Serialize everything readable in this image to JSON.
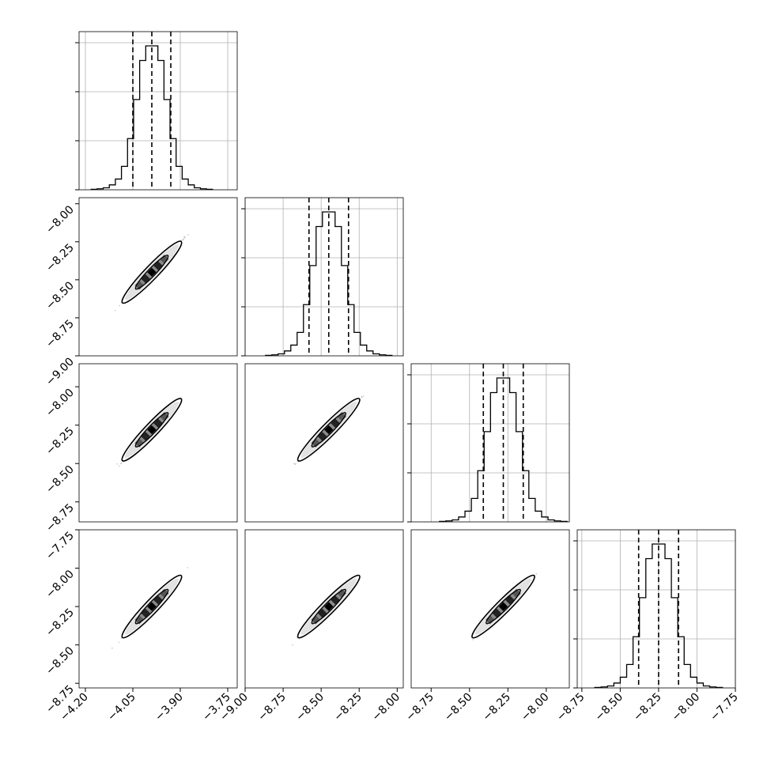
{
  "chart_data": {
    "type": "corner",
    "params": [
      {
        "lim": [
          -4.22,
          -3.72
        ],
        "ticks": [
          -4.2,
          -4.05,
          -3.9,
          -3.75
        ],
        "tick_labels": [
          "−4.20",
          "−4.05",
          "−3.90",
          "−3.75"
        ],
        "quantiles": [
          -4.05,
          -3.99,
          -3.93
        ]
      },
      {
        "lim": [
          -9.0,
          -7.96
        ],
        "ticks": [
          -9.0,
          -8.75,
          -8.5,
          -8.25,
          -8.0
        ],
        "tick_labels": [
          "−9.00",
          "−8.75",
          "−8.50",
          "−8.25",
          "−8.00"
        ],
        "quantiles": [
          -8.58,
          -8.45,
          -8.32
        ]
      },
      {
        "lim": [
          -8.88,
          -7.85
        ],
        "ticks": [
          -8.75,
          -8.5,
          -8.25,
          -8.0
        ],
        "tick_labels": [
          "−8.75",
          "−8.50",
          "−8.25",
          "−8.00"
        ],
        "quantiles": [
          -8.41,
          -8.28,
          -8.15
        ]
      },
      {
        "lim": [
          -8.78,
          -7.75
        ],
        "ticks": [
          -8.75,
          -8.5,
          -8.25,
          -8.0,
          -7.75
        ],
        "tick_labels": [
          "−8.75",
          "−8.50",
          "−8.25",
          "−8.00",
          "−7.75"
        ],
        "quantiles": [
          -8.38,
          -8.25,
          -8.12
        ]
      }
    ],
    "histograms": [
      [
        1,
        2,
        4,
        10,
        22,
        48,
        105,
        185,
        265,
        295,
        295,
        265,
        185,
        105,
        48,
        22,
        10,
        4,
        2,
        1
      ],
      [
        1,
        2,
        4,
        10,
        22,
        48,
        105,
        185,
        265,
        295,
        295,
        265,
        185,
        105,
        48,
        22,
        10,
        4,
        2,
        1
      ],
      [
        1,
        2,
        4,
        10,
        22,
        48,
        105,
        185,
        265,
        295,
        295,
        265,
        185,
        105,
        48,
        22,
        10,
        4,
        2,
        1
      ],
      [
        1,
        2,
        4,
        10,
        22,
        48,
        105,
        185,
        265,
        295,
        295,
        265,
        185,
        105,
        48,
        22,
        10,
        4,
        2,
        1
      ]
    ],
    "grid": true
  }
}
